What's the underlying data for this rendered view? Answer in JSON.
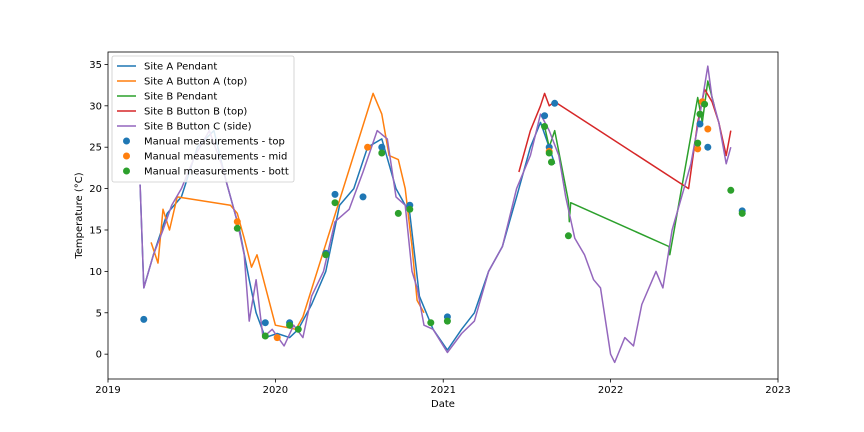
{
  "chart_data": {
    "type": "line",
    "xlabel": "Date",
    "ylabel": "Temperature (°C)",
    "xlim": [
      "2019-01-01",
      "2023-01-01"
    ],
    "ylim": [
      -3,
      36.5
    ],
    "x_ticks": [
      "2019",
      "2020",
      "2021",
      "2022",
      "2023"
    ],
    "y_ticks": [
      0,
      5,
      10,
      15,
      20,
      25,
      30,
      35
    ],
    "grid": false,
    "legend_position": "top-left",
    "series": [
      {
        "name": "Site A Pendant",
        "color": "#1f77b4",
        "kind": "line",
        "points": [
          [
            "2019-03-12",
            20.5
          ],
          [
            "2019-03-20",
            8.0
          ],
          [
            "2019-04-10",
            12.0
          ],
          [
            "2019-05-10",
            17.0
          ],
          [
            "2019-06-10",
            19.0
          ],
          [
            "2019-07-15",
            25.0
          ],
          [
            "2019-08-20",
            27.0
          ],
          [
            "2019-09-15",
            21.0
          ],
          [
            "2019-10-15",
            15.0
          ],
          [
            "2019-11-05",
            9.0
          ],
          [
            "2019-11-20",
            5.0
          ],
          [
            "2019-12-10",
            2.0
          ],
          [
            "2020-01-05",
            2.5
          ],
          [
            "2020-02-01",
            2.0
          ],
          [
            "2020-02-20",
            3.0
          ],
          [
            "2020-03-20",
            6.0
          ],
          [
            "2020-04-20",
            10.0
          ],
          [
            "2020-05-20",
            18.0
          ],
          [
            "2020-06-20",
            20.0
          ],
          [
            "2020-07-20",
            25.0
          ],
          [
            "2020-08-20",
            26.0
          ],
          [
            "2020-09-20",
            20.0
          ],
          [
            "2020-10-20",
            17.0
          ],
          [
            "2020-11-10",
            7.0
          ],
          [
            "2020-12-10",
            3.0
          ],
          [
            "2021-01-10",
            0.5
          ],
          [
            "2021-02-10",
            3.0
          ],
          [
            "2021-03-10",
            5.0
          ],
          [
            "2021-04-10",
            10.0
          ],
          [
            "2021-05-10",
            13.0
          ],
          [
            "2021-06-10",
            19.0
          ],
          [
            "2021-07-10",
            25.0
          ],
          [
            "2021-08-01",
            28.0
          ],
          [
            "2021-08-20",
            25.0
          ],
          [
            "2021-09-01",
            23.0
          ]
        ]
      },
      {
        "name": "Site A Button A (top)",
        "color": "#ff7f0e",
        "kind": "line",
        "points": [
          [
            "2019-04-05",
            13.5
          ],
          [
            "2019-04-20",
            11.0
          ],
          [
            "2019-05-01",
            17.5
          ],
          [
            "2019-05-15",
            15.0
          ],
          [
            "2019-06-01",
            19.0
          ],
          [
            "2019-09-25",
            18.0
          ],
          [
            "2019-10-10",
            17.0
          ],
          [
            "2019-10-25",
            14.0
          ],
          [
            "2019-11-10",
            10.5
          ],
          [
            "2019-11-22",
            12.0
          ],
          [
            "2020-01-01",
            3.5
          ],
          [
            "2020-02-15",
            3.0
          ],
          [
            "2020-03-01",
            4.5
          ],
          [
            "2020-08-01",
            31.5
          ],
          [
            "2020-08-20",
            29.0
          ],
          [
            "2020-09-05",
            24.0
          ],
          [
            "2020-09-25",
            23.5
          ],
          [
            "2020-10-10",
            20.0
          ],
          [
            "2020-10-25",
            13.0
          ],
          [
            "2020-11-05",
            6.5
          ],
          [
            "2020-11-20",
            5.0
          ]
        ]
      },
      {
        "name": "Site B Pendant",
        "color": "#2ca02c",
        "kind": "line",
        "points": [
          [
            "2021-08-10",
            27.5
          ],
          [
            "2021-08-20",
            25.0
          ],
          [
            "2021-09-01",
            27.0
          ],
          [
            "2021-10-01",
            18.5
          ],
          [
            "2021-10-03",
            16.0
          ],
          [
            "2021-10-06",
            18.3
          ],
          [
            "2022-05-08",
            13.0
          ],
          [
            "2022-05-10",
            12.0
          ],
          [
            "2022-07-10",
            31.0
          ],
          [
            "2022-07-20",
            28.0
          ],
          [
            "2022-08-01",
            33.0
          ],
          [
            "2022-08-15",
            30.0
          ]
        ]
      },
      {
        "name": "Site B Button B (top)",
        "color": "#d62728",
        "kind": "line",
        "points": [
          [
            "2021-06-15",
            22.0
          ],
          [
            "2021-07-10",
            27.0
          ],
          [
            "2021-08-01",
            30.0
          ],
          [
            "2021-08-10",
            31.5
          ],
          [
            "2021-08-20",
            30.0
          ],
          [
            "2021-09-01",
            30.5
          ],
          [
            "2022-06-20",
            20.0
          ],
          [
            "2022-07-10",
            28.0
          ],
          [
            "2022-07-25",
            32.0
          ],
          [
            "2022-08-10",
            30.5
          ],
          [
            "2022-08-25",
            28.0
          ],
          [
            "2022-09-10",
            24.0
          ],
          [
            "2022-09-20",
            27.0
          ]
        ]
      },
      {
        "name": "Site B Button C (side)",
        "color": "#9467bd",
        "kind": "line",
        "points": [
          [
            "2019-03-12",
            20.5
          ],
          [
            "2019-03-20",
            8.0
          ],
          [
            "2019-04-10",
            12.0
          ],
          [
            "2019-05-01",
            15.0
          ],
          [
            "2019-05-20",
            18.0
          ],
          [
            "2019-06-10",
            20.0
          ],
          [
            "2019-07-10",
            24.0
          ],
          [
            "2019-08-10",
            27.0
          ],
          [
            "2019-09-05",
            23.0
          ],
          [
            "2019-09-20",
            20.0
          ],
          [
            "2019-10-10",
            16.0
          ],
          [
            "2019-10-25",
            12.0
          ],
          [
            "2019-11-05",
            4.0
          ],
          [
            "2019-11-20",
            9.0
          ],
          [
            "2019-12-05",
            2.0
          ],
          [
            "2019-12-25",
            3.0
          ],
          [
            "2020-01-20",
            1.0
          ],
          [
            "2020-02-10",
            3.5
          ],
          [
            "2020-03-01",
            2.0
          ],
          [
            "2020-03-20",
            7.0
          ],
          [
            "2020-04-15",
            10.0
          ],
          [
            "2020-05-10",
            16.0
          ],
          [
            "2020-06-10",
            17.5
          ],
          [
            "2020-07-10",
            22.0
          ],
          [
            "2020-08-10",
            27.0
          ],
          [
            "2020-09-01",
            26.0
          ],
          [
            "2020-09-20",
            19.0
          ],
          [
            "2020-10-10",
            18.0
          ],
          [
            "2020-10-25",
            10.0
          ],
          [
            "2020-11-05",
            8.0
          ],
          [
            "2020-11-20",
            3.5
          ],
          [
            "2020-12-10",
            3.0
          ],
          [
            "2021-01-10",
            0.2
          ],
          [
            "2021-02-10",
            2.5
          ],
          [
            "2021-03-10",
            4.0
          ],
          [
            "2021-04-10",
            10.0
          ],
          [
            "2021-05-10",
            13.0
          ],
          [
            "2021-06-10",
            20.0
          ],
          [
            "2021-07-10",
            24.0
          ],
          [
            "2021-08-01",
            29.0
          ],
          [
            "2021-08-20",
            27.0
          ],
          [
            "2021-09-10",
            24.0
          ],
          [
            "2021-09-25",
            19.0
          ],
          [
            "2021-10-15",
            14.0
          ],
          [
            "2021-11-05",
            12.0
          ],
          [
            "2021-11-25",
            9.0
          ],
          [
            "2021-12-10",
            8.0
          ],
          [
            "2022-01-01",
            0.0
          ],
          [
            "2022-01-10",
            -1.0
          ],
          [
            "2022-02-01",
            2.0
          ],
          [
            "2022-02-20",
            1.0
          ],
          [
            "2022-03-10",
            6.0
          ],
          [
            "2022-04-10",
            10.0
          ],
          [
            "2022-04-25",
            8.0
          ],
          [
            "2022-05-15",
            15.0
          ],
          [
            "2022-06-10",
            20.0
          ],
          [
            "2022-06-25",
            23.0
          ],
          [
            "2022-07-15",
            29.0
          ],
          [
            "2022-08-01",
            34.8
          ],
          [
            "2022-08-10",
            31.0
          ],
          [
            "2022-08-25",
            28.0
          ],
          [
            "2022-09-10",
            23.0
          ],
          [
            "2022-09-20",
            25.0
          ]
        ]
      },
      {
        "name": "Manual measurements - top",
        "color": "#1f77b4",
        "kind": "scatter",
        "points": [
          [
            "2019-03-20",
            4.2
          ],
          [
            "2019-12-10",
            3.8
          ],
          [
            "2020-02-01",
            3.8
          ],
          [
            "2020-04-20",
            12.2
          ],
          [
            "2020-05-10",
            19.3
          ],
          [
            "2020-07-10",
            19.0
          ],
          [
            "2020-08-20",
            25.0
          ],
          [
            "2020-10-20",
            18.0
          ],
          [
            "2021-01-10",
            4.5
          ],
          [
            "2021-08-10",
            28.8
          ],
          [
            "2021-08-20",
            25.0
          ],
          [
            "2021-09-01",
            30.3
          ],
          [
            "2022-07-15",
            27.8
          ],
          [
            "2022-08-01",
            25.0
          ],
          [
            "2022-10-15",
            17.3
          ]
        ]
      },
      {
        "name": "Manual measurements - mid",
        "color": "#ff7f0e",
        "kind": "scatter",
        "points": [
          [
            "2019-10-10",
            16.0
          ],
          [
            "2020-01-05",
            2.0
          ],
          [
            "2020-07-20",
            25.0
          ],
          [
            "2021-08-20",
            24.5
          ],
          [
            "2022-07-10",
            24.8
          ],
          [
            "2022-07-20",
            30.5
          ],
          [
            "2022-08-01",
            27.2
          ]
        ]
      },
      {
        "name": "Manual measurements - bott",
        "color": "#2ca02c",
        "kind": "scatter",
        "points": [
          [
            "2019-10-10",
            15.2
          ],
          [
            "2019-12-10",
            2.2
          ],
          [
            "2020-02-01",
            3.5
          ],
          [
            "2020-02-20",
            3.0
          ],
          [
            "2020-04-20",
            12.0
          ],
          [
            "2020-05-10",
            18.3
          ],
          [
            "2020-08-20",
            24.3
          ],
          [
            "2020-09-25",
            17.0
          ],
          [
            "2020-10-20",
            17.5
          ],
          [
            "2020-12-05",
            3.8
          ],
          [
            "2021-01-10",
            4.0
          ],
          [
            "2021-08-10",
            27.5
          ],
          [
            "2021-08-20",
            24.3
          ],
          [
            "2021-08-25",
            23.2
          ],
          [
            "2021-10-01",
            14.3
          ],
          [
            "2022-07-10",
            25.5
          ],
          [
            "2022-07-15",
            29.0
          ],
          [
            "2022-07-25",
            30.2
          ],
          [
            "2022-09-20",
            19.8
          ],
          [
            "2022-10-15",
            17.0
          ]
        ]
      }
    ]
  }
}
